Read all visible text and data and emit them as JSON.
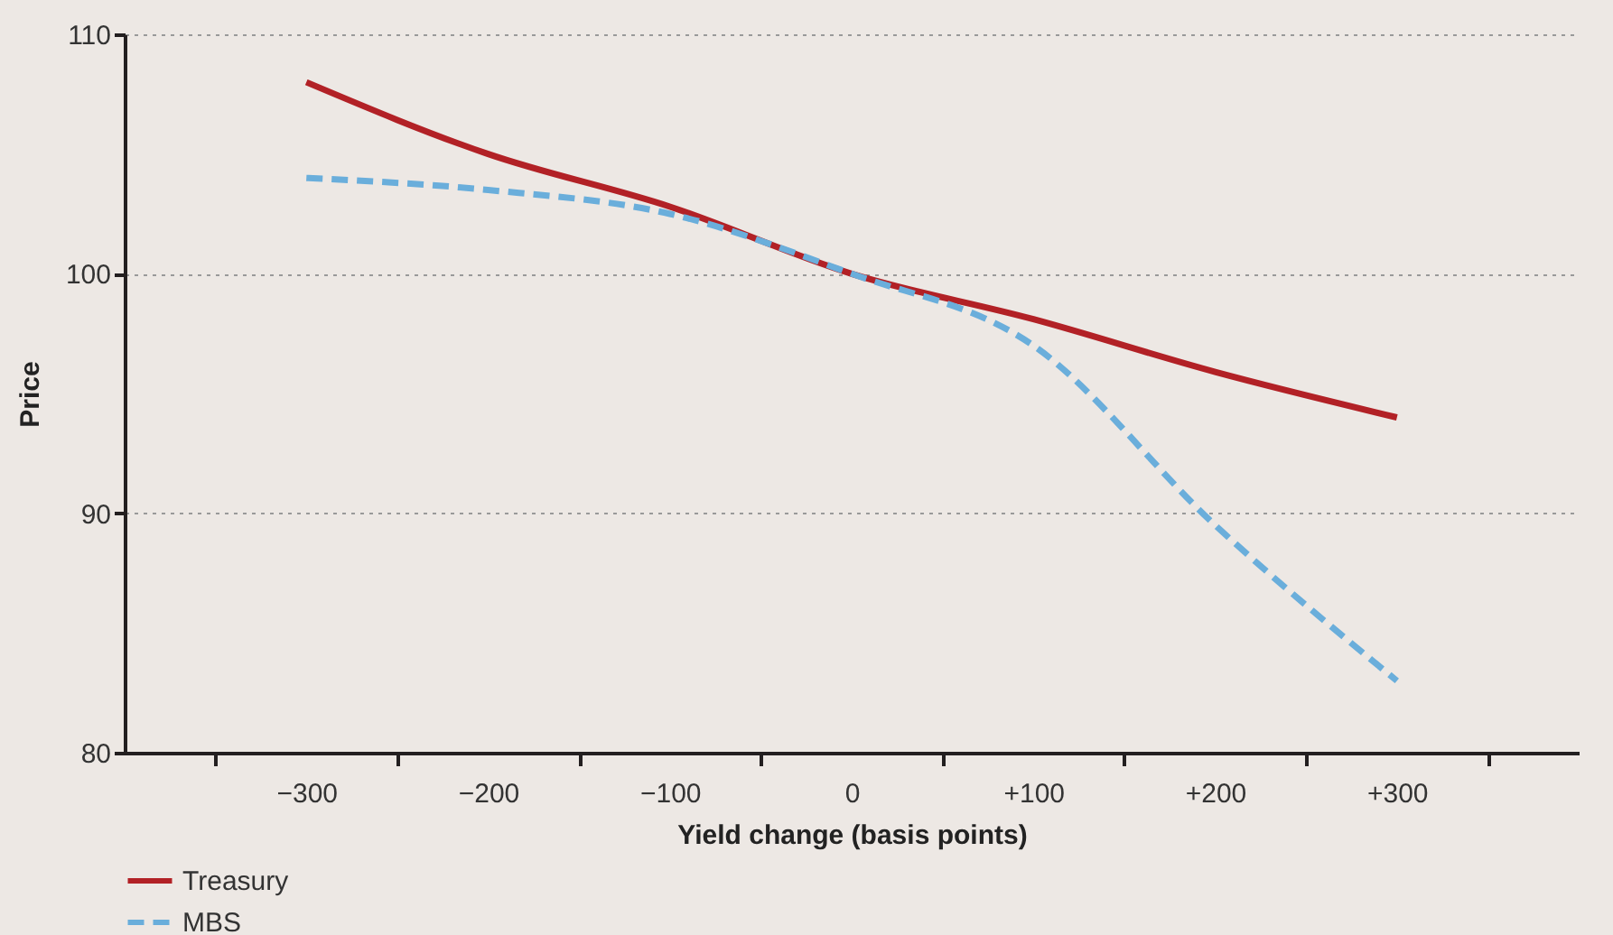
{
  "chart_data": {
    "type": "line",
    "xlabel": "Yield change (basis points)",
    "ylabel": "Price",
    "categories": [
      "−300",
      "−200",
      "−100",
      "0",
      "+100",
      "+200",
      "+300"
    ],
    "series": [
      {
        "name": "Treasury",
        "color": "#b22126",
        "line_style": "solid",
        "values": [
          108,
          105,
          102.8,
          100,
          98.1,
          95.9,
          94
        ]
      },
      {
        "name": "MBS",
        "color": "#6aaedb",
        "line_style": "dashed",
        "values": [
          104,
          103.5,
          102.5,
          100,
          97,
          89.5,
          83
        ]
      }
    ],
    "ylim": [
      80,
      110
    ],
    "yticks": [
      80,
      90,
      100,
      110
    ],
    "grid": "y",
    "legend": "bottom left"
  }
}
